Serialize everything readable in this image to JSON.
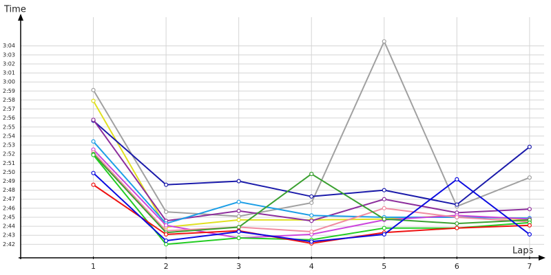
{
  "chart_data": {
    "type": "line",
    "ylabel": "Time",
    "xlabel": "Laps",
    "x": [
      1,
      2,
      3,
      4,
      5,
      6,
      7
    ],
    "xlim": [
      0,
      7.2
    ],
    "xticks": [
      1,
      2,
      3,
      4,
      5,
      6,
      7
    ],
    "ylim": [
      160.5,
      186.8
    ],
    "yticks": [
      {
        "value": 162,
        "label": "2:42"
      },
      {
        "value": 163,
        "label": "2:43"
      },
      {
        "value": 164,
        "label": "2:44"
      },
      {
        "value": 165,
        "label": "2:45"
      },
      {
        "value": 166,
        "label": "2:46"
      },
      {
        "value": 167,
        "label": "2:47"
      },
      {
        "value": 168,
        "label": "2:48"
      },
      {
        "value": 169,
        "label": "2:49"
      },
      {
        "value": 170,
        "label": "2:50"
      },
      {
        "value": 171,
        "label": "2:51"
      },
      {
        "value": 172,
        "label": "2:52"
      },
      {
        "value": 173,
        "label": "2:53"
      },
      {
        "value": 174,
        "label": "2:54"
      },
      {
        "value": 175,
        "label": "2:55"
      },
      {
        "value": 176,
        "label": "2:56"
      },
      {
        "value": 177,
        "label": "2:57"
      },
      {
        "value": 178,
        "label": "2:58"
      },
      {
        "value": 179,
        "label": "2:59"
      },
      {
        "value": 180,
        "label": "3:00"
      },
      {
        "value": 181,
        "label": "3:01"
      },
      {
        "value": 182,
        "label": "3:02"
      },
      {
        "value": 183,
        "label": "3:03"
      },
      {
        "value": 184,
        "label": "3:04"
      }
    ],
    "grid": true,
    "series": [
      {
        "color": "#a0a0a0",
        "values": [
          179.1,
          165.6,
          165.1,
          166.6,
          184.5,
          166.2,
          169.4
        ]
      },
      {
        "color": "#e0e020",
        "values": [
          177.9,
          163.9,
          164.7,
          164.7,
          164.8,
          165.2,
          164.7
        ]
      },
      {
        "color": "#1a1aaa",
        "values": [
          175.7,
          168.6,
          169.0,
          167.3,
          168.0,
          166.4,
          172.8
        ]
      },
      {
        "color": "#8c2d9c",
        "values": [
          175.8,
          164.6,
          165.7,
          164.6,
          167.0,
          165.5,
          165.9
        ]
      },
      {
        "color": "#1c9ee6",
        "values": [
          173.4,
          164.3,
          166.7,
          165.2,
          165.0,
          165.0,
          164.9
        ]
      },
      {
        "color": "#cc44dd",
        "values": [
          172.5,
          164.1,
          162.7,
          163.1,
          164.7,
          165.2,
          164.8
        ]
      },
      {
        "color": "#f08aa0",
        "values": [
          172.2,
          163.5,
          163.9,
          163.4,
          166.0,
          165.0,
          164.5
        ]
      },
      {
        "color": "#3aa030",
        "values": [
          172.0,
          163.3,
          163.9,
          169.8,
          164.8,
          164.3,
          164.7
        ]
      },
      {
        "color": "#22cc22",
        "values": [
          171.9,
          162.0,
          162.7,
          162.5,
          163.8,
          163.8,
          164.4
        ]
      },
      {
        "color": "#ee1111",
        "values": [
          168.6,
          163.1,
          163.5,
          162.1,
          163.3,
          163.8,
          164.1
        ]
      },
      {
        "color": "#0a0ae0",
        "values": [
          169.9,
          162.4,
          163.4,
          162.3,
          163.1,
          169.2,
          163.1
        ]
      }
    ]
  }
}
